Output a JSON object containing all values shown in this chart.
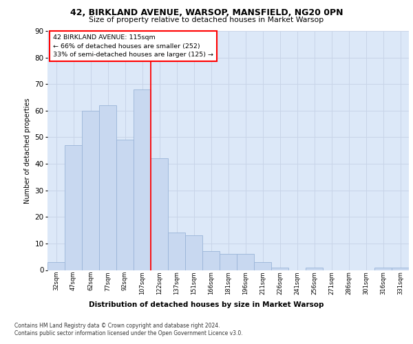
{
  "title1": "42, BIRKLAND AVENUE, WARSOP, MANSFIELD, NG20 0PN",
  "title2": "Size of property relative to detached houses in Market Warsop",
  "xlabel": "Distribution of detached houses by size in Market Warsop",
  "ylabel": "Number of detached properties",
  "categories": [
    "32sqm",
    "47sqm",
    "62sqm",
    "77sqm",
    "92sqm",
    "107sqm",
    "122sqm",
    "137sqm",
    "151sqm",
    "166sqm",
    "181sqm",
    "196sqm",
    "211sqm",
    "226sqm",
    "241sqm",
    "256sqm",
    "271sqm",
    "286sqm",
    "301sqm",
    "316sqm",
    "331sqm"
  ],
  "values": [
    3,
    47,
    60,
    62,
    49,
    68,
    42,
    14,
    13,
    7,
    6,
    6,
    3,
    1,
    0,
    1,
    0,
    0,
    0,
    1,
    1
  ],
  "bar_color": "#c8d8f0",
  "bar_edge_color": "#9ab4d8",
  "vline_color": "red",
  "annotation_title": "42 BIRKLAND AVENUE: 115sqm",
  "annotation_line1": "← 66% of detached houses are smaller (252)",
  "annotation_line2": "33% of semi-detached houses are larger (125) →",
  "annotation_box_color": "white",
  "annotation_box_edge": "red",
  "ylim": [
    0,
    90
  ],
  "yticks": [
    0,
    10,
    20,
    30,
    40,
    50,
    60,
    70,
    80,
    90
  ],
  "grid_color": "#c8d4e8",
  "bg_color": "#dce8f8",
  "footer1": "Contains HM Land Registry data © Crown copyright and database right 2024.",
  "footer2": "Contains public sector information licensed under the Open Government Licence v3.0."
}
